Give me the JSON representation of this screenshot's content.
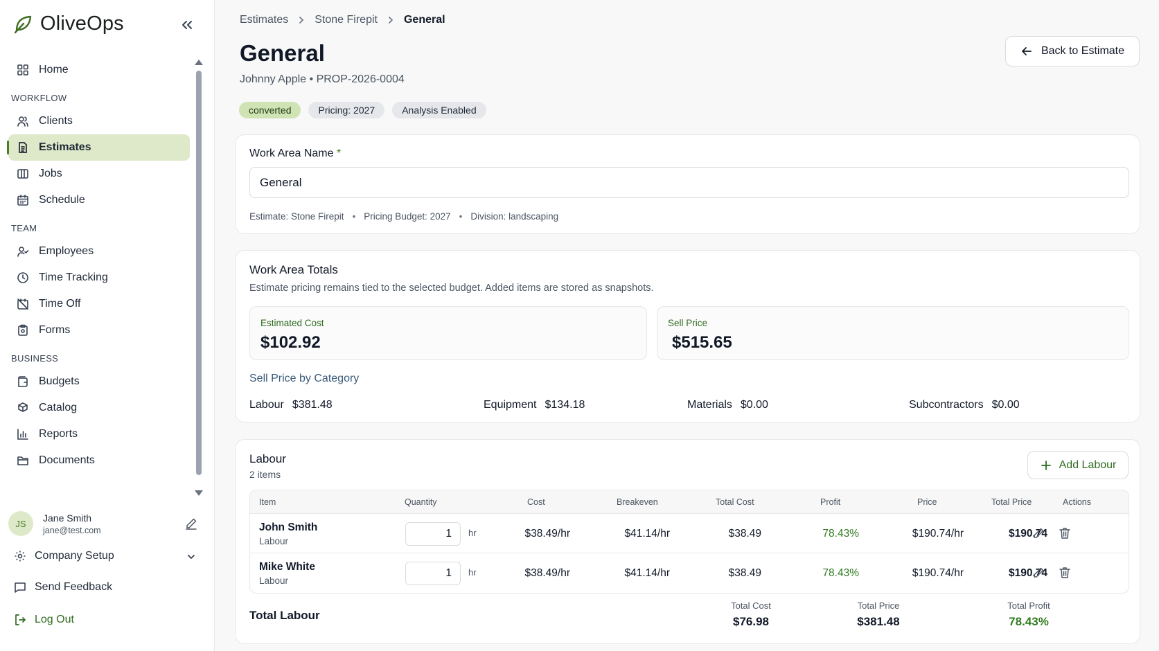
{
  "app": {
    "name": "OliveOps"
  },
  "sidebar": {
    "home": "Home",
    "sections": {
      "workflow": "WORKFLOW",
      "team": "TEAM",
      "business": "BUSINESS"
    },
    "workflow_items": [
      "Clients",
      "Estimates",
      "Jobs",
      "Schedule"
    ],
    "team_items": [
      "Employees",
      "Time Tracking",
      "Time Off",
      "Forms"
    ],
    "business_items": [
      "Budgets",
      "Catalog",
      "Reports",
      "Documents"
    ],
    "active": "Estimates",
    "user": {
      "initials": "JS",
      "name": "Jane Smith",
      "email": "jane@test.com"
    },
    "company_setup": "Company Setup",
    "send_feedback": "Send Feedback",
    "log_out": "Log Out"
  },
  "breadcrumbs": [
    "Estimates",
    "Stone Firepit",
    "General"
  ],
  "header": {
    "title": "General",
    "subtitle": "Johnny Apple • PROP-2026-0004",
    "badges": [
      "converted",
      "Pricing: 2027",
      "Analysis Enabled"
    ],
    "back_button": "Back to Estimate"
  },
  "work_area": {
    "label": "Work Area Name",
    "required_mark": "*",
    "value": "General",
    "meta": [
      "Estimate: Stone Firepit",
      "Pricing Budget: 2027",
      "Division: landscaping"
    ]
  },
  "totals": {
    "title": "Work Area Totals",
    "description": "Estimate pricing remains tied to the selected budget. Added items are stored as snapshots.",
    "estimated_cost_label": "Estimated Cost",
    "estimated_cost": "$102.92",
    "sell_price_label": "Sell Price",
    "sell_price": "$515.65",
    "category_title": "Sell Price by Category",
    "categories": [
      {
        "name": "Labour",
        "value": "$381.48"
      },
      {
        "name": "Equipment",
        "value": "$134.18"
      },
      {
        "name": "Materials",
        "value": "$0.00"
      },
      {
        "name": "Subcontractors",
        "value": "$0.00"
      }
    ]
  },
  "labour": {
    "title": "Labour",
    "count": "2 items",
    "add_button": "Add Labour",
    "columns": [
      "Item",
      "Quantity",
      "Cost",
      "Breakeven",
      "Total Cost",
      "Profit",
      "Price",
      "Total Price",
      "Actions"
    ],
    "rows": [
      {
        "name": "John Smith",
        "type": "Labour",
        "quantity": "1",
        "unit": "hr",
        "cost": "$38.49/hr",
        "breakeven": "$41.14/hr",
        "total_cost": "$38.49",
        "profit": "78.43%",
        "price": "$190.74/hr",
        "total_price": "$190.74"
      },
      {
        "name": "Mike White",
        "type": "Labour",
        "quantity": "1",
        "unit": "hr",
        "cost": "$38.49/hr",
        "breakeven": "$41.14/hr",
        "total_cost": "$38.49",
        "profit": "78.43%",
        "price": "$190.74/hr",
        "total_price": "$190.74"
      }
    ],
    "total_title": "Total Labour",
    "total_cost_label": "Total Cost",
    "total_cost": "$76.98",
    "total_price_label": "Total Price",
    "total_price": "$381.48",
    "total_profit_label": "Total Profit",
    "total_profit": "78.43%"
  },
  "colors": {
    "accent": "#4a7c2a",
    "active_bg": "#dde9c9",
    "profit": "#2f7a1f"
  }
}
